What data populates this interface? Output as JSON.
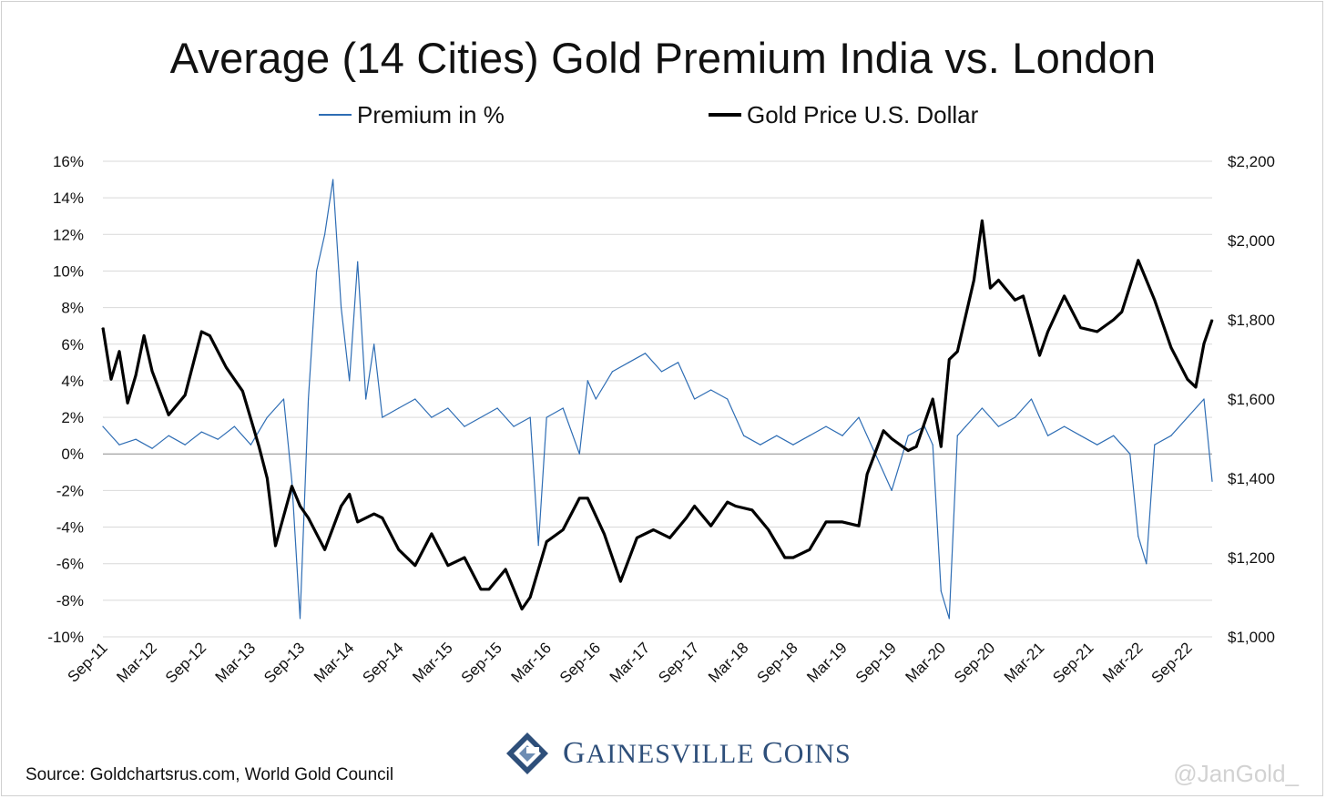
{
  "colors": {
    "premium": "#2e6db4",
    "gold": "#000000",
    "grid": "#d9d9d9",
    "zero": "#8c8c8c",
    "brand": "#2e4f7a"
  },
  "footer": {
    "source": "Source: Goldchartsrus.com, World Gold Council",
    "brand_first": "G",
    "brand_rest1": "AINESVILLE ",
    "brand_second": "C",
    "brand_rest2": "OINS",
    "handle": "@JanGold_"
  },
  "chart_data": {
    "type": "line",
    "title": "Average (14 Cities) Gold Premium India vs. London",
    "legend_position": "top-center",
    "grid": true,
    "x_tick_labels": [
      "Sep-11",
      "Mar-12",
      "Sep-12",
      "Mar-13",
      "Sep-13",
      "Mar-14",
      "Sep-14",
      "Mar-15",
      "Sep-15",
      "Mar-16",
      "Sep-16",
      "Mar-17",
      "Sep-17",
      "Mar-18",
      "Sep-18",
      "Mar-19",
      "Sep-19",
      "Mar-20",
      "Sep-20",
      "Mar-21",
      "Sep-21",
      "Mar-22",
      "Sep-22"
    ],
    "x_range": [
      "2011-09",
      "2022-12"
    ],
    "y_left": {
      "ticks": [
        "16%",
        "14%",
        "12%",
        "10%",
        "8%",
        "6%",
        "4%",
        "2%",
        "0%",
        "-2%",
        "-4%",
        "-6%",
        "-8%",
        "-10%"
      ],
      "range": [
        -10,
        16
      ]
    },
    "y_right": {
      "ticks": [
        "$2,200",
        "$2,000",
        "$1,800",
        "$1,600",
        "$1,400",
        "$1,200",
        "$1,000"
      ],
      "range": [
        1000,
        2200
      ]
    },
    "series": [
      {
        "name": "Premium in %",
        "axis": "left",
        "x": [
          "2011-09",
          "2011-11",
          "2012-01",
          "2012-03",
          "2012-05",
          "2012-07",
          "2012-09",
          "2012-11",
          "2013-01",
          "2013-03",
          "2013-05",
          "2013-07",
          "2013-08",
          "2013-09",
          "2013-10",
          "2013-11",
          "2013-12",
          "2014-01",
          "2014-02",
          "2014-03",
          "2014-04",
          "2014-05",
          "2014-06",
          "2014-07",
          "2014-09",
          "2014-11",
          "2015-01",
          "2015-03",
          "2015-05",
          "2015-07",
          "2015-09",
          "2015-11",
          "2016-01",
          "2016-02",
          "2016-03",
          "2016-05",
          "2016-07",
          "2016-08",
          "2016-09",
          "2016-11",
          "2017-01",
          "2017-03",
          "2017-05",
          "2017-07",
          "2017-09",
          "2017-11",
          "2018-01",
          "2018-03",
          "2018-05",
          "2018-07",
          "2018-09",
          "2018-11",
          "2019-01",
          "2019-03",
          "2019-05",
          "2019-07",
          "2019-09",
          "2019-11",
          "2020-01",
          "2020-02",
          "2020-03",
          "2020-04",
          "2020-05",
          "2020-06",
          "2020-08",
          "2020-10",
          "2020-12",
          "2021-02",
          "2021-04",
          "2021-06",
          "2021-08",
          "2021-10",
          "2021-12",
          "2022-02",
          "2022-03",
          "2022-04",
          "2022-05",
          "2022-07",
          "2022-09",
          "2022-11",
          "2022-12"
        ],
        "values": [
          1.5,
          0.5,
          0.8,
          0.3,
          1.0,
          0.5,
          1.2,
          0.8,
          1.5,
          0.5,
          2.0,
          3.0,
          -1.5,
          -9.0,
          3.0,
          10.0,
          12.0,
          15.0,
          8.0,
          4.0,
          10.5,
          3.0,
          6.0,
          2.0,
          2.5,
          3.0,
          2.0,
          2.5,
          1.5,
          2.0,
          2.5,
          1.5,
          2.0,
          -5.0,
          2.0,
          2.5,
          0.0,
          4.0,
          3.0,
          4.5,
          5.0,
          5.5,
          4.5,
          5.0,
          3.0,
          3.5,
          3.0,
          1.0,
          0.5,
          1.0,
          0.5,
          1.0,
          1.5,
          1.0,
          2.0,
          0.0,
          -2.0,
          1.0,
          1.5,
          0.5,
          -7.5,
          -9.0,
          1.0,
          1.5,
          2.5,
          1.5,
          2.0,
          3.0,
          1.0,
          1.5,
          1.0,
          0.5,
          1.0,
          0.0,
          -4.5,
          -6.0,
          0.5,
          1.0,
          2.0,
          3.0,
          -1.5
        ]
      },
      {
        "name": "Gold Price U.S. Dollar",
        "axis": "right",
        "x": [
          "2011-09",
          "2011-10",
          "2011-11",
          "2011-12",
          "2012-01",
          "2012-02",
          "2012-03",
          "2012-05",
          "2012-07",
          "2012-09",
          "2012-10",
          "2012-12",
          "2013-02",
          "2013-04",
          "2013-05",
          "2013-06",
          "2013-08",
          "2013-09",
          "2013-10",
          "2013-12",
          "2014-02",
          "2014-03",
          "2014-04",
          "2014-06",
          "2014-07",
          "2014-09",
          "2014-11",
          "2015-01",
          "2015-03",
          "2015-05",
          "2015-07",
          "2015-08",
          "2015-10",
          "2015-12",
          "2016-01",
          "2016-03",
          "2016-05",
          "2016-07",
          "2016-08",
          "2016-10",
          "2016-12",
          "2017-02",
          "2017-04",
          "2017-06",
          "2017-08",
          "2017-09",
          "2017-11",
          "2018-01",
          "2018-02",
          "2018-04",
          "2018-06",
          "2018-08",
          "2018-09",
          "2018-11",
          "2019-01",
          "2019-03",
          "2019-05",
          "2019-06",
          "2019-08",
          "2019-09",
          "2019-11",
          "2019-12",
          "2020-02",
          "2020-03",
          "2020-04",
          "2020-05",
          "2020-07",
          "2020-08",
          "2020-09",
          "2020-10",
          "2020-12",
          "2021-01",
          "2021-03",
          "2021-04",
          "2021-06",
          "2021-08",
          "2021-10",
          "2021-12",
          "2022-01",
          "2022-03",
          "2022-04",
          "2022-05",
          "2022-07",
          "2022-09",
          "2022-10",
          "2022-11",
          "2022-12"
        ],
        "values": [
          1780,
          1650,
          1720,
          1590,
          1660,
          1760,
          1670,
          1560,
          1610,
          1770,
          1760,
          1680,
          1620,
          1480,
          1400,
          1230,
          1380,
          1330,
          1300,
          1220,
          1330,
          1360,
          1290,
          1310,
          1300,
          1220,
          1180,
          1260,
          1180,
          1200,
          1120,
          1120,
          1170,
          1070,
          1100,
          1240,
          1270,
          1350,
          1350,
          1260,
          1140,
          1250,
          1270,
          1250,
          1300,
          1330,
          1280,
          1340,
          1330,
          1320,
          1270,
          1200,
          1200,
          1220,
          1290,
          1290,
          1280,
          1410,
          1520,
          1500,
          1470,
          1480,
          1600,
          1480,
          1700,
          1720,
          1900,
          2050,
          1880,
          1900,
          1850,
          1860,
          1710,
          1770,
          1860,
          1780,
          1770,
          1800,
          1820,
          1950,
          1900,
          1850,
          1730,
          1650,
          1630,
          1740,
          1800
        ]
      }
    ]
  }
}
